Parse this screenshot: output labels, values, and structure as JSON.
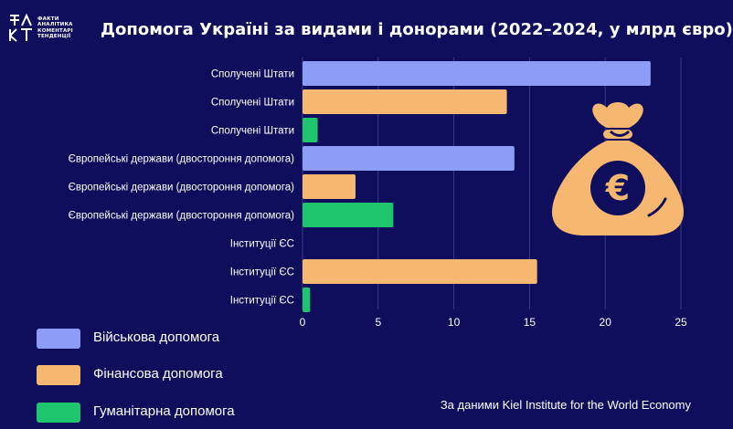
{
  "logo": {
    "mark": "ФАКТ",
    "lines": [
      "ФАКТИ",
      "АНАЛІТИКА",
      "КОМЕНТАРІ",
      "ТЕНДЕНЦІЇ"
    ]
  },
  "title": "Допомога Україні за видами і донорами (2022–2024, у млрд євро)",
  "source": "За даними Kiel Institute for the World Economy",
  "colors": {
    "background": "#0e0e5c",
    "military": "#8d9cf5",
    "financial": "#f6b871",
    "humanitarian": "#1fc56d"
  },
  "legend": [
    {
      "label": "Військова допомога",
      "color": "#8d9cf5"
    },
    {
      "label": "Фінансова допомога",
      "color": "#f6b871"
    },
    {
      "label": "Гуманітарна допомога",
      "color": "#1fc56d"
    }
  ],
  "icon": "money-bag-euro-icon",
  "chart_data": {
    "type": "bar",
    "orientation": "horizontal",
    "categories": [
      "Сполучені Штати",
      "Сполучені Штати",
      "Сполучені Штати",
      "Європейські держави (двостороння допомога)",
      "Європейські держави (двостороння допомога)",
      "Європейські держави (двостороння допомога)",
      "Інституції ЄС",
      "Інституції ЄС",
      "Інституції ЄС"
    ],
    "values": [
      23,
      13.5,
      1,
      14,
      3.5,
      6,
      0,
      15.5,
      0.5
    ],
    "bar_colors": [
      "#8d9cf5",
      "#f6b871",
      "#1fc56d",
      "#8d9cf5",
      "#f6b871",
      "#1fc56d",
      "#8d9cf5",
      "#f6b871",
      "#1fc56d"
    ],
    "xlim": [
      0,
      25
    ],
    "xticks": [
      0,
      5,
      10,
      15,
      20,
      25
    ],
    "grid": true
  }
}
